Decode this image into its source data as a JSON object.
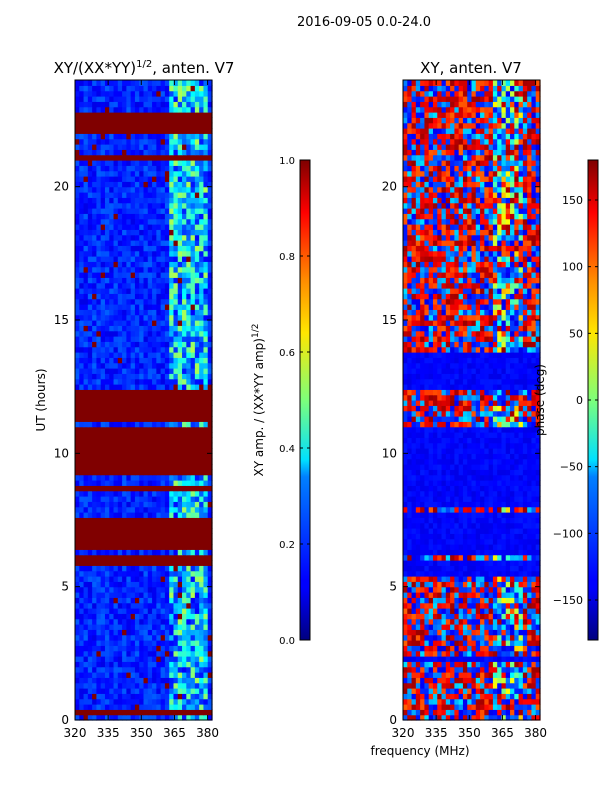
{
  "figure": {
    "suptitle": "2016-09-05 0.0-24.0",
    "ylabel": "UT (hours)",
    "xlabel": "frequency (MHz)"
  },
  "chart_data": [
    {
      "type": "heatmap",
      "title": "XY/(XX*YY)",
      "title_exp": "1/2",
      "title_suffix": ", anten. V7",
      "xlim": [
        320,
        382
      ],
      "ylim": [
        0,
        24
      ],
      "xticks": [
        320,
        335,
        350,
        365,
        380
      ],
      "yticks": [
        0,
        5,
        10,
        15,
        20
      ],
      "colorbar": {
        "label": "XY amp. / (XX*YY amp)",
        "label_exp": "1/2",
        "range": [
          0.0,
          1.0
        ],
        "ticks": [
          "0.0",
          "0.2",
          "0.4",
          "0.6",
          "0.8",
          "1.0"
        ],
        "colormap": "jet"
      },
      "saturated_ut_bands": [
        [
          22.0,
          22.8
        ],
        [
          21.0,
          21.2
        ],
        [
          11.3,
          12.5
        ],
        [
          9.3,
          11.0
        ],
        [
          8.6,
          8.9
        ],
        [
          6.5,
          7.7
        ],
        [
          5.8,
          6.2
        ],
        [
          0.3,
          0.5
        ]
      ]
    },
    {
      "type": "heatmap",
      "title": "XY, anten. V7",
      "xlim": [
        320,
        382
      ],
      "ylim": [
        0,
        24
      ],
      "xticks": [
        320,
        335,
        350,
        365,
        380
      ],
      "yticks": [
        0,
        5,
        10,
        15,
        20
      ],
      "colorbar": {
        "label": "phase (deg)",
        "range": [
          -180,
          180
        ],
        "ticks": [
          "−150",
          "−100",
          "−50",
          "0",
          "50",
          "100",
          "150"
        ],
        "colormap": "jet"
      },
      "low_phase_ut_bands": [
        [
          8.0,
          9.0
        ],
        [
          6.2,
          7.8
        ],
        [
          5.4,
          6.0
        ],
        [
          2.2,
          2.5
        ],
        [
          12.5,
          13.8
        ],
        [
          9.0,
          11.0
        ]
      ]
    }
  ],
  "colors": {
    "axis": "#000000",
    "background": "#ffffff"
  }
}
